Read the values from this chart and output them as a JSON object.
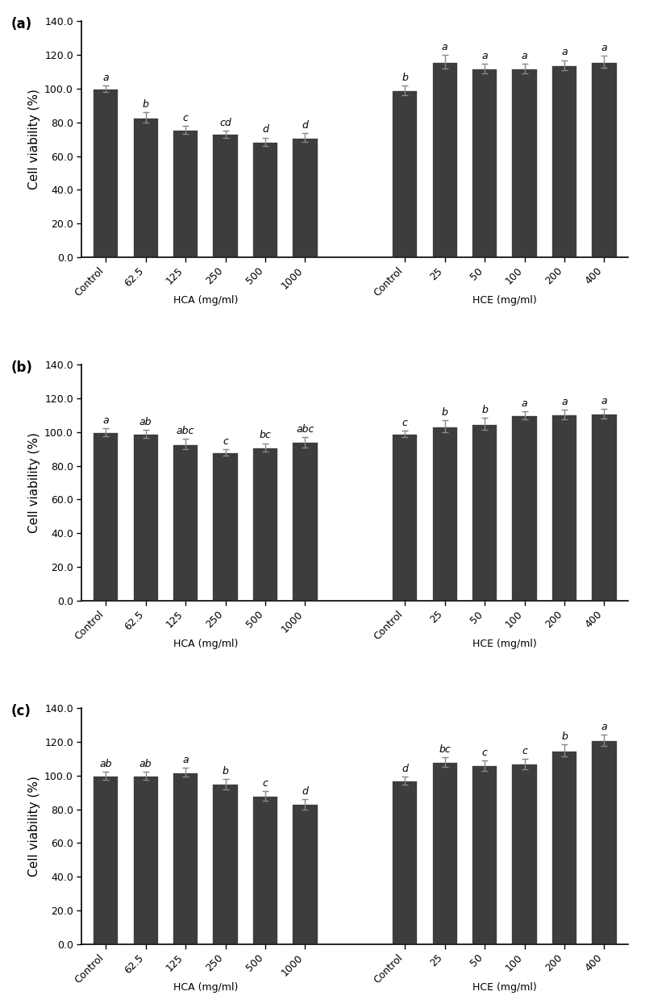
{
  "panels": [
    {
      "label": "(a)",
      "hca_values": [
        100.0,
        83.0,
        75.5,
        73.0,
        68.5,
        71.0
      ],
      "hca_errors": [
        2.0,
        3.0,
        2.5,
        2.0,
        2.5,
        2.5
      ],
      "hca_letters": [
        "a",
        "b",
        "c",
        "cd",
        "d",
        "d"
      ],
      "hce_values": [
        99.0,
        116.0,
        112.0,
        112.0,
        114.0,
        116.0
      ],
      "hce_errors": [
        3.0,
        4.0,
        3.0,
        3.0,
        3.0,
        3.5
      ],
      "hce_letters": [
        "b",
        "a",
        "a",
        "a",
        "a",
        "a"
      ]
    },
    {
      "label": "(b)",
      "hca_values": [
        100.0,
        99.0,
        93.0,
        88.0,
        91.0,
        94.0
      ],
      "hca_errors": [
        2.5,
        2.5,
        3.0,
        2.0,
        2.5,
        3.0
      ],
      "hca_letters": [
        "a",
        "ab",
        "abc",
        "c",
        "bc",
        "abc"
      ],
      "hce_values": [
        99.0,
        103.5,
        105.0,
        110.0,
        110.5,
        111.0
      ],
      "hce_errors": [
        2.0,
        3.5,
        3.5,
        2.5,
        3.0,
        3.0
      ],
      "hce_letters": [
        "c",
        "b",
        "b",
        "a",
        "a",
        "a"
      ]
    },
    {
      "label": "(c)",
      "hca_values": [
        100.0,
        100.0,
        102.0,
        95.0,
        88.0,
        83.0
      ],
      "hca_errors": [
        2.5,
        2.5,
        2.5,
        3.0,
        3.0,
        3.0
      ],
      "hca_letters": [
        "ab",
        "ab",
        "a",
        "b",
        "c",
        "d"
      ],
      "hce_values": [
        97.0,
        108.0,
        106.0,
        107.0,
        115.0,
        121.0
      ],
      "hce_errors": [
        2.5,
        3.0,
        3.0,
        3.0,
        3.5,
        3.5
      ],
      "hce_letters": [
        "d",
        "bc",
        "c",
        "c",
        "b",
        "a"
      ]
    }
  ],
  "hca_xticklabels": [
    "Control",
    "62.5",
    "125",
    "250",
    "500",
    "1000"
  ],
  "hce_xticklabels": [
    "Control",
    "25",
    "50",
    "100",
    "200",
    "400"
  ],
  "ylabel": "Cell viability (%)",
  "ylim": [
    0,
    140
  ],
  "yticks": [
    0,
    20.0,
    40.0,
    60.0,
    80.0,
    100.0,
    120.0,
    140.0
  ],
  "bar_color": "#3d3d3d",
  "bar_edgecolor": "#ffffff",
  "bar_linewidth": 1.2,
  "hca_bracket_label": "HCA (mg/ml)",
  "hce_bracket_label": "HCE (mg/ml)",
  "figure_width": 8.0,
  "figure_height": 12.5,
  "dpi": 100
}
